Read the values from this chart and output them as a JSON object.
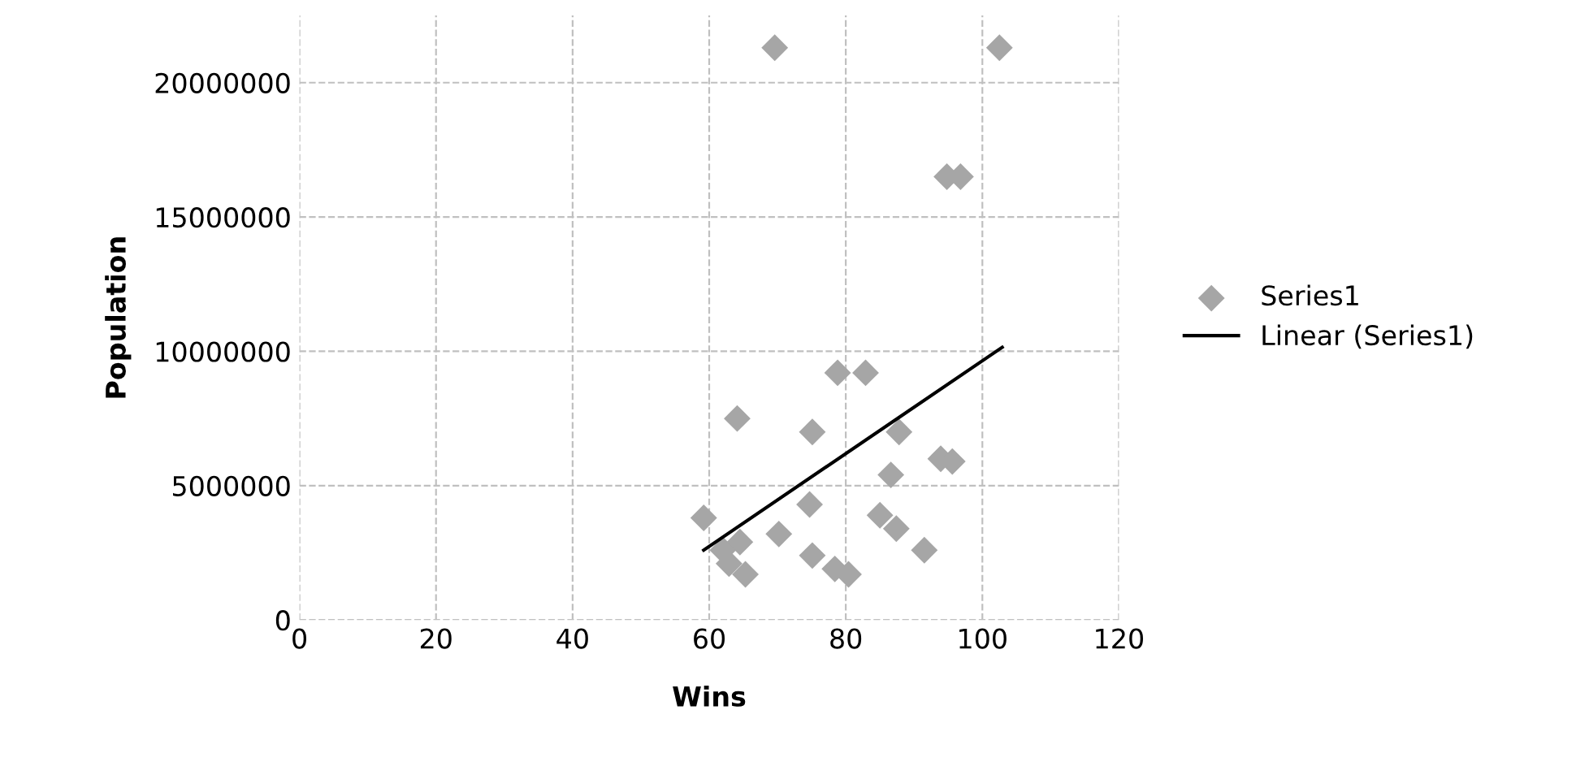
{
  "chart_data": {
    "type": "scatter",
    "xlabel": "Wins",
    "ylabel": "Population",
    "xlim": [
      0,
      120
    ],
    "xticks": [
      0,
      20,
      40,
      60,
      80,
      100,
      120
    ],
    "ylim": [
      0,
      22500000
    ],
    "yticks": [
      0,
      5000000,
      10000000,
      15000000,
      20000000
    ],
    "grid": true,
    "legend": "right",
    "marker": "diamond",
    "series": [
      {
        "name": "Series1",
        "color": "#a6a6a6",
        "x": [
          59.2,
          64.1,
          78.8,
          82.9,
          75.1,
          87.8,
          93.9,
          95.6,
          86.6,
          74.7,
          70.2,
          85,
          87.4,
          91.5,
          62,
          64.5,
          65.3,
          62.9,
          75.1,
          78.4,
          80.4,
          69.6,
          102.5,
          94.8,
          96.8
        ],
        "values": [
          3800000,
          7500000,
          9200000,
          9200000,
          7000000,
          7000000,
          6000000,
          5900000,
          5400000,
          4300000,
          3200000,
          3900000,
          3400000,
          2600000,
          2600000,
          2900000,
          1700000,
          2100000,
          2400000,
          1900000,
          1700000,
          21300000,
          21300000,
          16500000,
          16500000
        ]
      },
      {
        "name": "Linear (Series1)",
        "color": "#000000",
        "type": "line",
        "marker": "none",
        "line_style": "solid",
        "x": [
          59.2,
          102.9
        ],
        "values": [
          2600000,
          10150000
        ]
      }
    ]
  }
}
